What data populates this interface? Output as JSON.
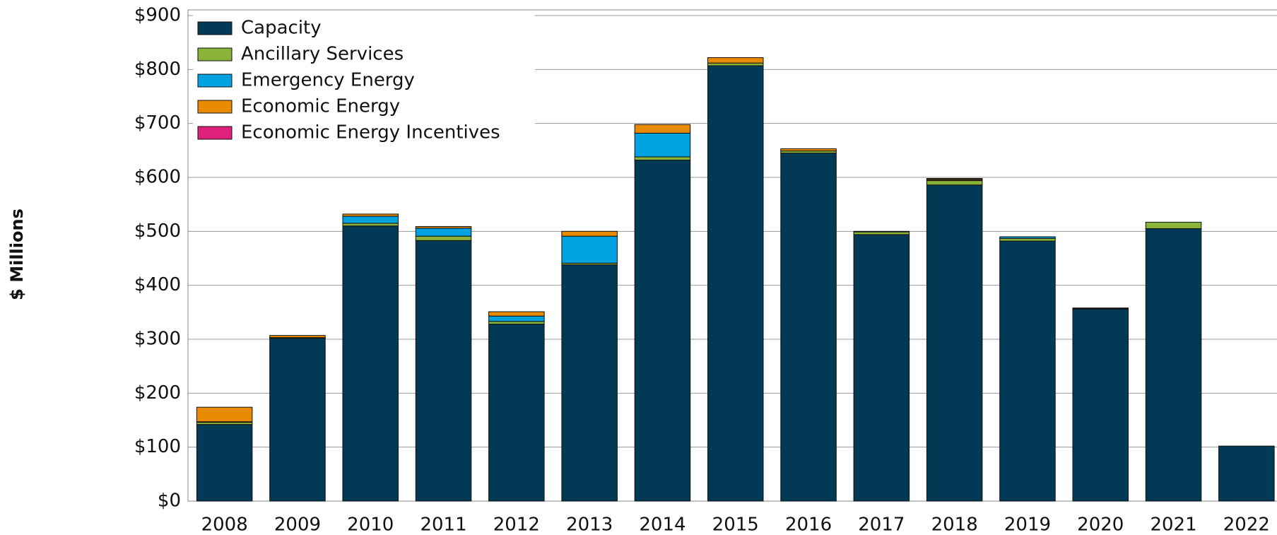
{
  "chart_data": {
    "type": "stacked_bar",
    "ylabel": "$ Millions",
    "categories": [
      "2008",
      "2009",
      "2010",
      "2011",
      "2012",
      "2013",
      "2014",
      "2015",
      "2016",
      "2017",
      "2018",
      "2019",
      "2020",
      "2021",
      "2022"
    ],
    "series": [
      {
        "name": "Capacity",
        "color": "#023a56",
        "values": [
          142,
          302,
          510,
          483,
          328,
          438,
          632,
          807,
          645,
          494,
          586,
          482,
          356,
          505,
          102
        ]
      },
      {
        "name": "Ancillary Services",
        "color": "#8bb33a",
        "values": [
          4,
          1,
          5,
          8,
          5,
          3,
          6,
          5,
          4,
          5,
          8,
          5,
          1,
          12,
          0
        ]
      },
      {
        "name": "Emergency Energy",
        "color": "#00a3e0",
        "values": [
          1,
          0,
          13,
          15,
          10,
          50,
          44,
          0,
          0,
          0,
          1,
          3,
          0,
          0,
          0
        ]
      },
      {
        "name": "Economic Energy",
        "color": "#e88b00",
        "values": [
          27,
          4,
          4,
          3,
          8,
          9,
          16,
          10,
          4,
          1,
          2,
          0,
          1,
          0,
          0
        ]
      },
      {
        "name": "Economic Energy Incentives",
        "color": "#e0207d",
        "values": [
          0,
          0,
          0,
          0,
          0,
          0,
          0,
          0,
          0,
          0,
          1,
          0,
          0,
          0,
          0
        ]
      }
    ],
    "ylim": [
      0,
      900
    ],
    "yticks": [
      {
        "value": 0,
        "label": "$0"
      },
      {
        "value": 100,
        "label": "$100"
      },
      {
        "value": 200,
        "label": "$200"
      },
      {
        "value": 300,
        "label": "$300"
      },
      {
        "value": 400,
        "label": "$400"
      },
      {
        "value": 500,
        "label": "$500"
      },
      {
        "value": 600,
        "label": "$600"
      },
      {
        "value": 700,
        "label": "$700"
      },
      {
        "value": 800,
        "label": "$800"
      },
      {
        "value": 900,
        "label": "$900"
      }
    ],
    "grid": true,
    "legend": "upper left"
  }
}
